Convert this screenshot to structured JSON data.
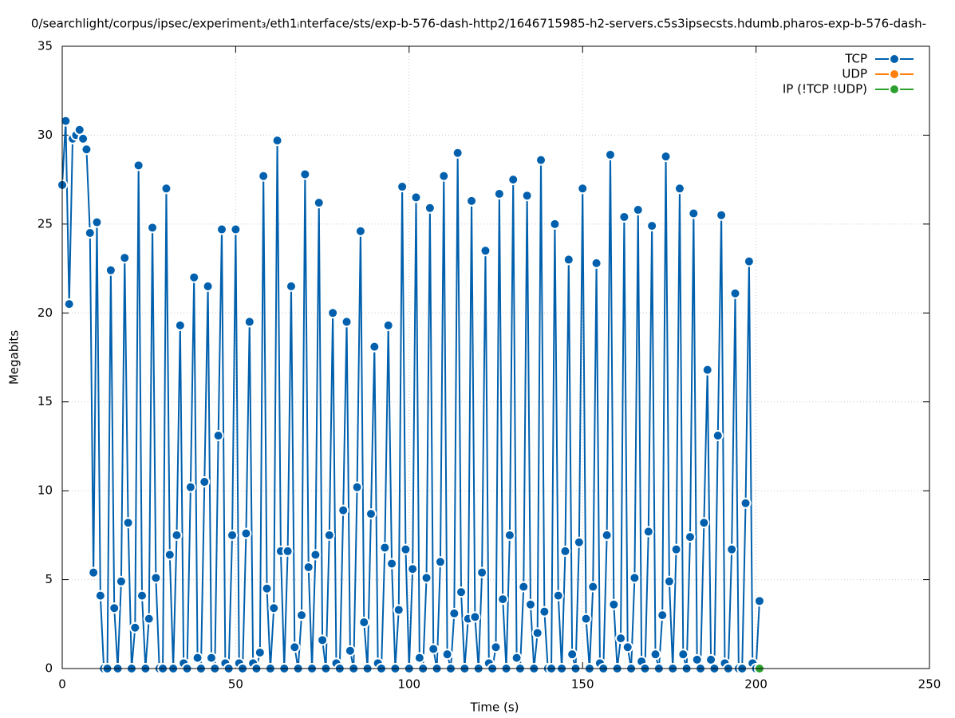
{
  "chart_data": {
    "type": "line",
    "title": "0/searchlight/corpus/ipsec/experiment₃/eth1ᵢnterface/sts/exp-b-576-dash-http2/1646715985-h2-servers.c5s3ipsecsts.hdumb.pharos-exp-b-576-dash-",
    "x_label": "Time (s)",
    "y_label": "Megabits",
    "xlim": [
      0,
      250
    ],
    "xticks": [
      0,
      50,
      100,
      150,
      200,
      250
    ],
    "ylim": [
      0,
      35
    ],
    "yticks": [
      0,
      5,
      10,
      15,
      20,
      25,
      30,
      35
    ],
    "grid": true,
    "legend": "top right",
    "markers": true,
    "series": [
      {
        "name": "TCP",
        "color": "#0060ad",
        "x": [
          0,
          1,
          2,
          3,
          4,
          5,
          6,
          7,
          8,
          9,
          10,
          11,
          12,
          13,
          14,
          15,
          16,
          17,
          18,
          19,
          20,
          21,
          22,
          23,
          24,
          25,
          26,
          27,
          28,
          29,
          30,
          31,
          32,
          33,
          34,
          35,
          36,
          37,
          38,
          39,
          40,
          41,
          42,
          43,
          44,
          45,
          46,
          47,
          48,
          49,
          50,
          51,
          52,
          53,
          54,
          55,
          56,
          57,
          58,
          59,
          60,
          61,
          62,
          63,
          64,
          65,
          66,
          67,
          68,
          69,
          70,
          71,
          72,
          73,
          74,
          75,
          76,
          77,
          78,
          79,
          80,
          81,
          82,
          83,
          84,
          85,
          86,
          87,
          88,
          89,
          90,
          91,
          92,
          93,
          94,
          95,
          96,
          97,
          98,
          99,
          100,
          101,
          102,
          103,
          104,
          105,
          106,
          107,
          108,
          109,
          110,
          111,
          112,
          113,
          114,
          115,
          116,
          117,
          118,
          119,
          120,
          121,
          122,
          123,
          124,
          125,
          126,
          127,
          128,
          129,
          130,
          131,
          132,
          133,
          134,
          135,
          136,
          137,
          138,
          139,
          140,
          141,
          142,
          143,
          144,
          145,
          146,
          147,
          148,
          149,
          150,
          151,
          152,
          153,
          154,
          155,
          156,
          157,
          158,
          159,
          160,
          161,
          162,
          163,
          164,
          165,
          166,
          167,
          168,
          169,
          170,
          171,
          172,
          173,
          174,
          175,
          176,
          177,
          178,
          179,
          180,
          181,
          182,
          183,
          184,
          185,
          186,
          187,
          188,
          189,
          190,
          191,
          192,
          193,
          194,
          195,
          196,
          197,
          198,
          199,
          200,
          201
        ],
        "values": [
          27.2,
          30.8,
          20.5,
          29.8,
          30.0,
          30.3,
          29.8,
          29.2,
          24.5,
          5.4,
          25.1,
          4.1,
          0,
          0,
          22.4,
          3.4,
          0,
          4.9,
          23.1,
          8.2,
          0,
          2.3,
          28.3,
          4.1,
          0,
          2.8,
          24.8,
          5.1,
          0,
          0,
          27.0,
          6.4,
          0,
          7.5,
          19.3,
          0.3,
          0,
          10.2,
          22.0,
          0.6,
          0,
          10.5,
          21.5,
          0.6,
          0,
          13.1,
          24.7,
          0.3,
          0,
          7.5,
          24.7,
          0.3,
          0,
          7.6,
          19.5,
          0.3,
          0,
          0.9,
          27.7,
          4.5,
          0,
          3.4,
          29.7,
          6.6,
          0,
          6.6,
          21.5,
          1.2,
          0,
          3.0,
          27.8,
          5.7,
          0,
          6.4,
          26.2,
          1.6,
          0,
          7.5,
          20.0,
          0.3,
          0,
          8.9,
          19.5,
          1.0,
          0,
          10.2,
          24.6,
          2.6,
          0,
          8.7,
          18.1,
          0.3,
          0,
          6.8,
          19.3,
          5.9,
          0,
          3.3,
          27.1,
          6.7,
          0,
          5.6,
          26.5,
          0.6,
          0,
          5.1,
          25.9,
          1.1,
          0,
          6.0,
          27.7,
          0.8,
          0,
          3.1,
          29.0,
          4.3,
          0,
          2.8,
          26.3,
          2.9,
          0,
          5.4,
          23.5,
          0.3,
          0,
          1.2,
          26.7,
          3.9,
          0,
          7.5,
          27.5,
          0.6,
          0,
          4.6,
          26.6,
          3.6,
          0,
          2.0,
          28.6,
          3.2,
          0,
          0,
          25.0,
          4.1,
          0,
          6.6,
          23.0,
          0.8,
          0,
          7.1,
          27.0,
          2.8,
          0,
          4.6,
          22.8,
          0.3,
          0,
          7.5,
          28.9,
          3.6,
          0,
          1.7,
          25.4,
          1.2,
          0,
          5.1,
          25.8,
          0.4,
          0,
          7.7,
          24.9,
          0.8,
          0,
          3.0,
          28.8,
          4.9,
          0,
          6.7,
          27.0,
          0.8,
          0,
          7.4,
          25.6,
          0.5,
          0,
          8.2,
          16.8,
          0.5,
          0,
          13.1,
          25.5,
          0.3,
          0,
          6.7,
          21.1,
          0,
          0,
          9.3,
          22.9,
          0.3,
          0,
          3.8
        ]
      },
      {
        "name": "UDP",
        "color": "#ff7f0e",
        "x": [
          201
        ],
        "values": [
          0
        ]
      },
      {
        "name": "IP (!TCP  !UDP)",
        "color": "#2ca02c",
        "x": [
          201
        ],
        "values": [
          0
        ]
      }
    ]
  }
}
